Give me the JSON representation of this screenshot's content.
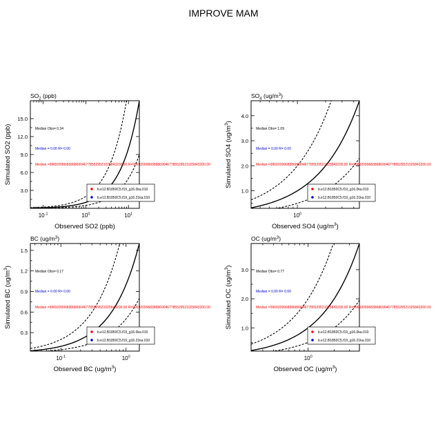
{
  "figure": {
    "title": "IMPROVE MAM"
  },
  "chart_data": [
    {
      "type": "scatter",
      "title": "SO",
      "title_sub": "2",
      "title_unit": " (ppb)",
      "xlabel": "Observed SO2 (ppb)",
      "ylabel": "Simulated SO2 (ppb)",
      "xscale": "log",
      "yscale": "linear",
      "xlim": [
        0.05,
        18
      ],
      "ylim": [
        0.0,
        18.0
      ],
      "xticks": [
        {
          "v": 0.1,
          "b": "10",
          "e": "-1"
        },
        {
          "v": 1,
          "b": "10",
          "e": "0"
        },
        {
          "v": 10,
          "b": "10",
          "e": "1"
        }
      ],
      "yticks": [
        3.0,
        6.0,
        9.0,
        12.0,
        15.0
      ],
      "median_obs": "Median Obs= 0.34",
      "median_blue": "Median = 0.00 R= 0.00",
      "median_red": "Median =99692099683868690467785529521025843200.00 R=99692099683868690467785529521025843200.00",
      "legend": [
        "b.e12.B1850C5.f19_g16.0ka.010",
        "b.e12.B1850C5.f19_g16.21ka.010"
      ],
      "legend_colors": [
        "#ff0000",
        "#0000cc"
      ],
      "legend_position": "bottom-right",
      "reference_lines": [
        "1:1",
        "2:1",
        "1:2"
      ],
      "points": []
    },
    {
      "type": "scatter",
      "title": "SO",
      "title_sub": "4",
      "title_unit": " (ug/m3)",
      "xlabel": "Observed SO4 (ug/m3)",
      "ylabel": "Simulated SO4 (ug/m3)",
      "xscale": "log",
      "yscale": "linear",
      "xlim": [
        0.32,
        4.6
      ],
      "ylim": [
        0.3,
        4.6
      ],
      "xticks": [
        {
          "v": 1,
          "b": "10",
          "e": "0"
        }
      ],
      "yticks": [
        1.0,
        2.0,
        3.0,
        4.0
      ],
      "median_obs": "Median Obs= 1.09",
      "median_blue": "Median = 0.00 R= 0.00",
      "median_red": "Median =99692099683868690467785529521025843200.00 R=99692099683868690467785529521025843200.00",
      "legend": [
        "b.e12.B1850C5.f19_g16.0ka.010",
        "b.e12.B1850C5.f19_g16.21ka.010"
      ],
      "legend_colors": [
        "#ff0000",
        "#0000cc"
      ],
      "legend_position": "bottom-right",
      "reference_lines": [
        "1:1",
        "2:1",
        "1:2"
      ],
      "points": []
    },
    {
      "type": "scatter",
      "title": "BC",
      "title_sub": "",
      "title_unit": " (ug/m3)",
      "xlabel": "Observed BC (ug/m3)",
      "ylabel": "Simulated BC (ug/m3)",
      "xscale": "log",
      "yscale": "linear",
      "xlim": [
        0.034,
        1.6
      ],
      "ylim": [
        0.03,
        1.6
      ],
      "xticks": [
        {
          "v": 0.1,
          "b": "10",
          "e": "-1"
        },
        {
          "v": 1,
          "b": "10",
          "e": "0"
        }
      ],
      "yticks": [
        0.3,
        0.6,
        0.9,
        1.2,
        1.5
      ],
      "median_obs": "Median Obs= 0.17",
      "median_blue": "Median = 0.00 R= 0.00",
      "median_red": "Median =99692099683868690467785529521025843200.00 R=99692099683868690467785529521025843200.00",
      "legend": [
        "b.e12.B1850C5.f19_g16.0ka.010",
        "b.e12.B1850C5.f19_g16.21ka.010"
      ],
      "legend_colors": [
        "#ff0000",
        "#0000cc"
      ],
      "legend_position": "bottom-right",
      "reference_lines": [
        "1:1",
        "2:1",
        "1:2"
      ],
      "points": []
    },
    {
      "type": "scatter",
      "title": "OC",
      "title_sub": "",
      "title_unit": " (ug/m3)",
      "xlabel": "Observed OC (ug/m3)",
      "ylabel": "Simulated OC (ug/m3)",
      "xscale": "log",
      "yscale": "linear",
      "xlim": [
        0.22,
        3.9
      ],
      "ylim": [
        0.2,
        3.9
      ],
      "xticks": [
        {
          "v": 1,
          "b": "10",
          "e": "0"
        }
      ],
      "yticks": [
        1.0,
        2.0,
        3.0
      ],
      "median_obs": "Median Obs= 0.77",
      "median_blue": "Median = 0.00 R= 0.00",
      "median_red": "Median =99692099683868690467785529521025843200.00 R=99692099683868690467785529521025843200.00",
      "legend": [
        "b.e12.B1850C5.f19_g16.0ka.010",
        "b.e12.B1850C5.f19_g16.21ka.010"
      ],
      "legend_colors": [
        "#ff0000",
        "#0000cc"
      ],
      "legend_position": "bottom-right",
      "reference_lines": [
        "1:1",
        "2:1",
        "1:2"
      ],
      "points": []
    }
  ]
}
